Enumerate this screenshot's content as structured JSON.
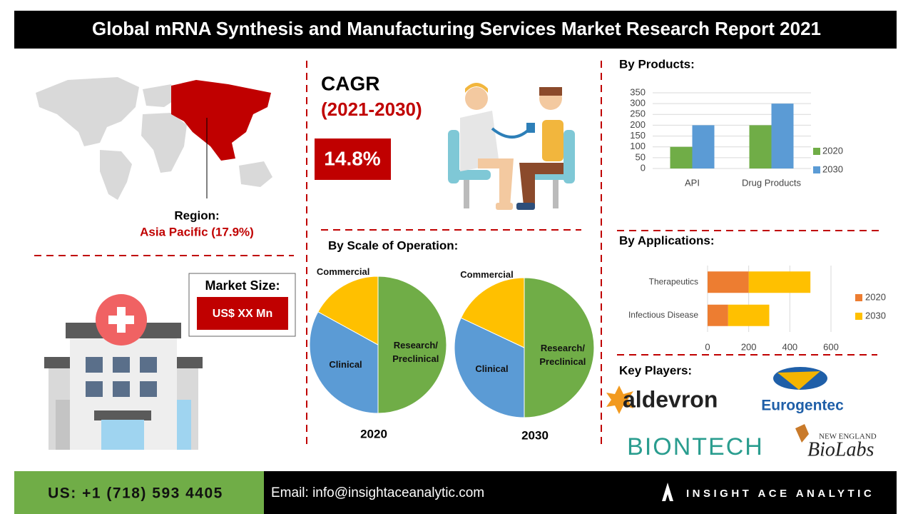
{
  "header": {
    "title": "Global mRNA Synthesis and Manufacturing Services Market Research Report 2021"
  },
  "region": {
    "label": "Region:",
    "value": "Asia Pacific (17.9%)"
  },
  "cagr": {
    "label": "CAGR",
    "period": "(2021-2030)",
    "value": "14.8%"
  },
  "market_size": {
    "label": "Market Size:",
    "value": "US$ XX Mn"
  },
  "chart_data": [
    {
      "type": "pie",
      "title": "By  Scale of Operation:",
      "caption": "2020",
      "categories": [
        "Research/ Preclinical",
        "Clinical",
        "Commercial"
      ],
      "values": [
        50,
        33,
        17
      ],
      "colors": [
        "#70ad47",
        "#5b9bd5",
        "#ffc000"
      ]
    },
    {
      "type": "pie",
      "caption": "2030",
      "categories": [
        "Research/ Preclinical",
        "Clinical",
        "Commercial"
      ],
      "values": [
        50,
        32,
        18
      ],
      "colors": [
        "#70ad47",
        "#5b9bd5",
        "#ffc000"
      ]
    },
    {
      "type": "bar",
      "title": "By  Products:",
      "categories": [
        "API",
        "Drug Products"
      ],
      "series": [
        {
          "name": "2020",
          "color": "#70ad47",
          "values": [
            100,
            200
          ]
        },
        {
          "name": "2030",
          "color": "#5b9bd5",
          "values": [
            200,
            300
          ]
        }
      ],
      "ylim": [
        0,
        350
      ],
      "yticks": [
        0,
        50,
        100,
        150,
        200,
        250,
        300,
        350
      ],
      "grid": true,
      "legend": "right"
    },
    {
      "type": "bar",
      "orientation": "horizontal",
      "stacked": true,
      "title": "By Applications:",
      "categories": [
        "Therapeutics",
        "Infectious Disease"
      ],
      "series": [
        {
          "name": "2020",
          "color": "#ed7d31",
          "values": [
            200,
            100
          ]
        },
        {
          "name": "2030",
          "color": "#ffc000",
          "values": [
            300,
            200
          ]
        }
      ],
      "xlim": [
        0,
        600
      ],
      "xticks": [
        0,
        200,
        400,
        600
      ],
      "grid": true,
      "legend": "right"
    }
  ],
  "key_players": {
    "title": "Key Players:",
    "logos": [
      "aldevron",
      "Eurogentec",
      "BIONTECH",
      "NEW ENGLAND",
      "BioLabs"
    ]
  },
  "footer": {
    "phone": "US: +1 (718) 593 4405",
    "email": "Email: info@insightaceanalytic.com",
    "brand": "INSIGHT ACE ANALYTIC"
  }
}
